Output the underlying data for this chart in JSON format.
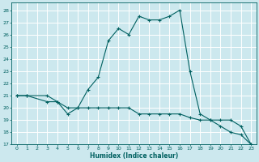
{
  "xlabel": "Humidex (Indice chaleur)",
  "background_color": "#cce8ee",
  "grid_color": "#b0d8e0",
  "line_color": "#006060",
  "xlim": [
    -0.5,
    23.5
  ],
  "ylim": [
    17,
    28.6
  ],
  "yticks": [
    17,
    18,
    19,
    20,
    21,
    22,
    23,
    24,
    25,
    26,
    27,
    28
  ],
  "xticks": [
    0,
    1,
    2,
    3,
    4,
    5,
    6,
    7,
    8,
    9,
    10,
    11,
    12,
    13,
    14,
    15,
    16,
    17,
    18,
    19,
    20,
    21,
    22,
    23
  ],
  "line1_x": [
    0,
    1,
    3,
    4,
    5,
    6,
    7,
    8,
    9,
    10,
    11,
    12,
    13,
    14,
    15,
    16,
    17,
    18,
    19,
    20,
    21,
    22,
    23
  ],
  "line1_y": [
    21.0,
    21.0,
    21.0,
    20.5,
    19.5,
    20.0,
    21.5,
    22.5,
    25.5,
    26.5,
    26.0,
    27.5,
    27.2,
    27.2,
    27.5,
    28.0,
    23.0,
    19.5,
    19.0,
    19.0,
    19.0,
    18.5,
    17.0
  ],
  "line2_x": [
    0,
    1,
    3,
    4,
    5,
    6,
    7,
    8,
    9,
    10,
    11,
    12,
    13,
    14,
    15,
    16,
    17,
    18,
    19,
    20,
    21,
    22,
    23
  ],
  "line2_y": [
    21.0,
    21.0,
    20.5,
    20.5,
    20.0,
    20.0,
    20.0,
    20.0,
    20.0,
    20.0,
    20.0,
    19.5,
    19.5,
    19.5,
    19.5,
    19.5,
    19.2,
    19.0,
    19.0,
    18.5,
    18.0,
    17.8,
    17.0
  ]
}
